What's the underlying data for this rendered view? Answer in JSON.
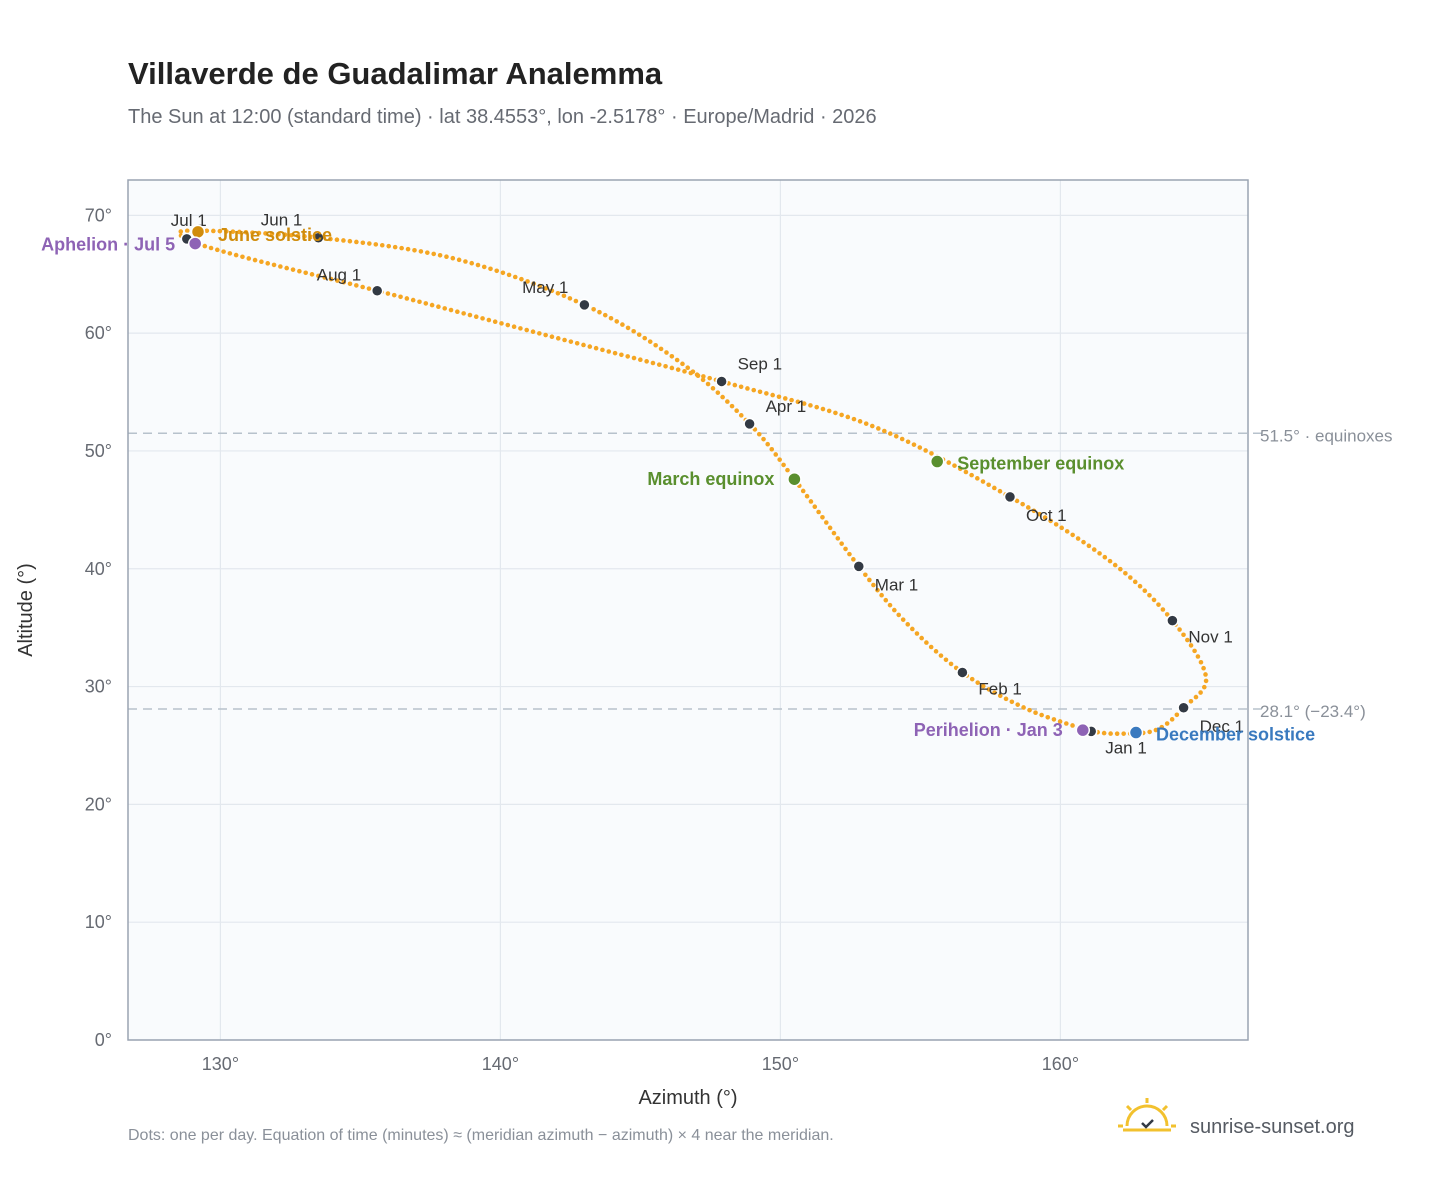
{
  "header": {
    "title": "Villaverde de Guadalimar Analemma",
    "subtitle": "The Sun at 12:00 (standard time) · lat 38.4553°, lon -2.5178° · Europe/Madrid · 2026"
  },
  "footer": {
    "note": "Dots: one per day. Equation of time (minutes) ≈ (meridian azimuth − azimuth) × 4 near the meridian.",
    "brand": "sunrise-sunset.org"
  },
  "colors": {
    "curve": "#f5a623",
    "month_marker": "#333a44",
    "equinox": "#5a8f2e",
    "solstice_june": "#d08c0c",
    "solstice_december": "#3a7abf",
    "apsis": "#8e63b5",
    "plot_bg": "#f9fbfd",
    "grid": "#e3e8ee",
    "frame": "#9aa4b2",
    "reference_line": "#b7c2cc",
    "brand_icon": "#f2c12e"
  },
  "chart_data": {
    "type": "scatter",
    "xlabel": "Azimuth (°)",
    "ylabel": "Altitude (°)",
    "xlim": [
      126.7,
      166.7
    ],
    "ylim": [
      0,
      73
    ],
    "xticks": [
      130,
      140,
      150,
      160
    ],
    "xtick_labels": [
      "130°",
      "140°",
      "150°",
      "160°"
    ],
    "yticks": [
      0,
      10,
      20,
      30,
      40,
      50,
      60,
      70
    ],
    "ytick_labels": [
      "0°",
      "10°",
      "20°",
      "30°",
      "40°",
      "50°",
      "60°",
      "70°"
    ],
    "grid": true,
    "reference_lines": [
      {
        "y": 51.5,
        "label": "51.5° · equinoxes"
      },
      {
        "y": 28.1,
        "label": "28.1° (−23.4°)"
      }
    ],
    "month_markers": [
      {
        "label": "Jan 1",
        "az": 161.1,
        "alt": 26.2
      },
      {
        "label": "Feb 1",
        "az": 156.5,
        "alt": 31.2
      },
      {
        "label": "Mar 1",
        "az": 152.8,
        "alt": 40.2
      },
      {
        "label": "Apr 1",
        "az": 148.9,
        "alt": 52.3
      },
      {
        "label": "May 1",
        "az": 143.0,
        "alt": 62.4
      },
      {
        "label": "Jun 1",
        "az": 133.5,
        "alt": 68.1
      },
      {
        "label": "Jul 1",
        "az": 128.8,
        "alt": 68.0
      },
      {
        "label": "Aug 1",
        "az": 135.6,
        "alt": 63.6
      },
      {
        "label": "Sep 1",
        "az": 147.9,
        "alt": 55.9
      },
      {
        "label": "Oct 1",
        "az": 158.2,
        "alt": 46.1
      },
      {
        "label": "Nov 1",
        "az": 164.0,
        "alt": 35.6
      },
      {
        "label": "Dec 1",
        "az": 164.4,
        "alt": 28.2
      }
    ],
    "events": [
      {
        "label": "March equinox",
        "az": 150.5,
        "alt": 47.6,
        "kind": "equinox"
      },
      {
        "label": "September equinox",
        "az": 155.6,
        "alt": 49.1,
        "kind": "equinox"
      },
      {
        "label": "June solstice",
        "az": 129.2,
        "alt": 68.6,
        "kind": "solstice_june"
      },
      {
        "label": "December solstice",
        "az": 162.7,
        "alt": 26.1,
        "kind": "solstice_december"
      },
      {
        "label": "Aphelion · Jul 5",
        "az": 129.1,
        "alt": 67.6,
        "kind": "apsis"
      },
      {
        "label": "Perihelion · Jan 3",
        "az": 160.8,
        "alt": 26.3,
        "kind": "apsis"
      }
    ],
    "daily_path_knots": [
      [
        161.1,
        26.2
      ],
      [
        158.8,
        28.1
      ],
      [
        156.5,
        31.2
      ],
      [
        154.5,
        35.4
      ],
      [
        152.8,
        40.2
      ],
      [
        150.5,
        47.6
      ],
      [
        148.9,
        52.3
      ],
      [
        146.5,
        57.4
      ],
      [
        143.0,
        62.4
      ],
      [
        138.4,
        66.3
      ],
      [
        133.5,
        68.1
      ],
      [
        129.0,
        68.7
      ],
      [
        128.8,
        68.0
      ],
      [
        130.6,
        66.6
      ],
      [
        135.6,
        63.6
      ],
      [
        142.0,
        59.6
      ],
      [
        147.9,
        55.9
      ],
      [
        153.3,
        52.1
      ],
      [
        158.2,
        46.1
      ],
      [
        161.8,
        40.6
      ],
      [
        164.0,
        35.6
      ],
      [
        165.2,
        30.8
      ],
      [
        164.4,
        28.2
      ],
      [
        163.4,
        26.3
      ],
      [
        162.0,
        26.0
      ],
      [
        161.1,
        26.2
      ]
    ]
  }
}
